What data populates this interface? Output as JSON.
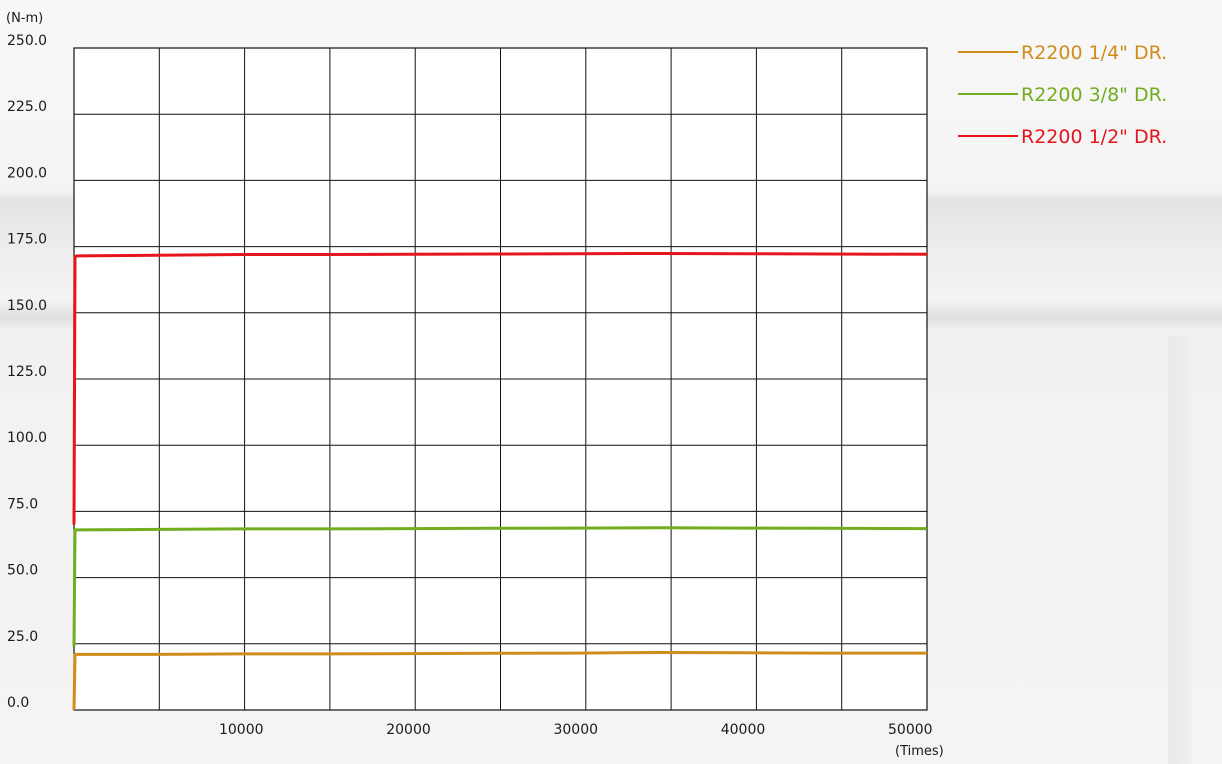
{
  "chart_data": {
    "type": "line",
    "title": "",
    "ylabel": "(N-m)",
    "xlabel": "(Times)",
    "ylim": [
      0,
      250
    ],
    "xlim": [
      0,
      51000
    ],
    "yticks": [
      0,
      25,
      50,
      75,
      100,
      125,
      150,
      175,
      200,
      225,
      250
    ],
    "ytick_labels": [
      "0.0",
      "25.0",
      "50.0",
      "75.0",
      "100.0",
      "125.0",
      "150.0",
      "175.0",
      "200.0",
      "225.0",
      "250.0"
    ],
    "xticks": [
      10000,
      20000,
      30000,
      40000,
      50000
    ],
    "xtick_labels": [
      "10000",
      "20000",
      "30000",
      "40000",
      "50000"
    ],
    "x_gridlines": [
      5100,
      10200,
      15300,
      20400,
      25500,
      30600,
      35700,
      40800,
      45900
    ],
    "grid": true,
    "legend_position": "top-right",
    "series": [
      {
        "name": "R2200 1/4\" DR.",
        "color": "#d08c1a",
        "x": [
          0,
          60,
          150,
          5000,
          10000,
          15000,
          20000,
          25000,
          30000,
          35000,
          40000,
          45000,
          51000
        ],
        "values": [
          0,
          21,
          21,
          21,
          21.2,
          21.2,
          21.3,
          21.4,
          21.5,
          21.7,
          21.6,
          21.5,
          21.5
        ]
      },
      {
        "name": "R2200 3/8\" DR.",
        "color": "#72ad1e",
        "x": [
          0,
          60,
          150,
          5000,
          10000,
          15000,
          20000,
          25000,
          30000,
          35000,
          40000,
          45000,
          51000
        ],
        "values": [
          24,
          68,
          68,
          68.2,
          68.4,
          68.4,
          68.5,
          68.6,
          68.7,
          68.8,
          68.7,
          68.6,
          68.5
        ]
      },
      {
        "name": "R2200 1/2\" DR.",
        "color": "#e6141c",
        "x": [
          0,
          60,
          150,
          5000,
          10000,
          15000,
          20000,
          25000,
          30000,
          35000,
          40000,
          45000,
          51000
        ],
        "values": [
          70,
          171,
          171.5,
          171.7,
          172,
          172,
          172.1,
          172.2,
          172.3,
          172.4,
          172.3,
          172.2,
          172.1
        ]
      }
    ]
  }
}
